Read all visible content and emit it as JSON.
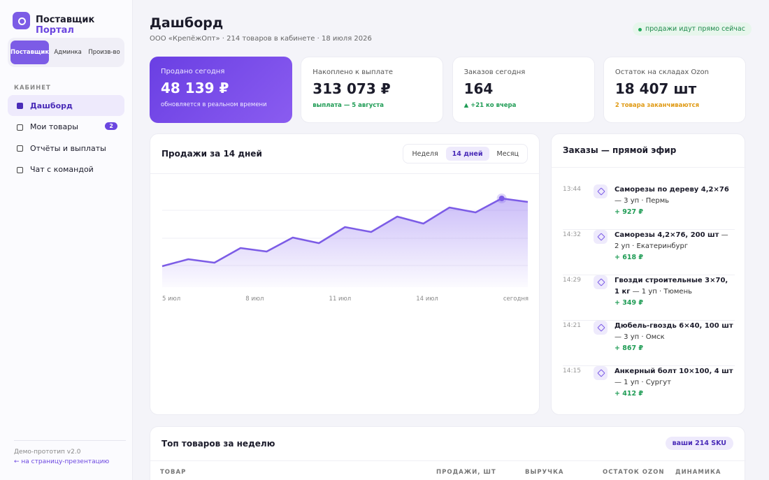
{
  "sidebar": {
    "brand": "Поставщик",
    "brand_accent": "Портал",
    "tabs": [
      "Поставщик",
      "Админка",
      "Произв-во"
    ],
    "active_tab": 0,
    "section": "КАБИНЕТ",
    "nav": [
      {
        "label": "Дашборд"
      },
      {
        "label": "Мои товары",
        "badge": "2"
      },
      {
        "label": "Отчёты и выплаты"
      },
      {
        "label": "Чат с командой"
      }
    ],
    "active_nav": 0,
    "footer_note": "Демо-прототип v2.0",
    "footer_link": "← на страницу-презентацию"
  },
  "header": {
    "title": "Дашборд",
    "subtitle": "ООО «КрепёжОпт» · 214 товаров в кабинете · 18 июля 2026",
    "status": "продажи идут прямо сейчас"
  },
  "kpis": [
    {
      "label": "Продано сегодня",
      "value": "48 139 ₽",
      "note": "обновляется в реальном времени"
    },
    {
      "label": "Накоплено к выплате",
      "value": "313 073 ₽",
      "note": "выплата — 5 августа"
    },
    {
      "label": "Заказов сегодня",
      "value": "164",
      "note": "▲ +21 ко вчера"
    },
    {
      "label": "Остаток на складах Ozon",
      "value": "18 407 шт",
      "note": "2 товара заканчиваются"
    }
  ],
  "sales": {
    "title": "Продажи за 14 дней",
    "periods": [
      "Неделя",
      "14 дней",
      "Месяц"
    ],
    "active_period": 1,
    "chart": {
      "type": "line",
      "color": "#7c5ce6",
      "x_labels": [
        "5 июл",
        "8 июл",
        "11 июл",
        "14 июл",
        "сегодня"
      ],
      "values": [
        30,
        40,
        35,
        56,
        51,
        71,
        63,
        86,
        79,
        101,
        91,
        114,
        107,
        127,
        122
      ],
      "ylim": [
        0,
        160
      ],
      "highlight": 13
    }
  },
  "orders": {
    "title": "Заказы — прямой эфир",
    "items": [
      {
        "time": "13:44",
        "name": "Саморезы по дереву 4,2×76",
        "details": " — 3 уп · Пермь",
        "amount": "+ 927 ₽"
      },
      {
        "time": "14:32",
        "name": "Саморезы 4,2×76, 200 шт",
        "details": " — 2 уп · Екатеринбург",
        "amount": "+ 618 ₽"
      },
      {
        "time": "14:29",
        "name": "Гвозди строительные 3×70, 1 кг",
        "details": " — 1 уп · Тюмень",
        "amount": "+ 349 ₽"
      },
      {
        "time": "14:21",
        "name": "Дюбель-гвоздь 6×40, 100 шт",
        "details": " — 3 уп · Омск",
        "amount": "+ 867 ₽"
      },
      {
        "time": "14:15",
        "name": "Анкерный болт 10×100, 4 шт",
        "details": " — 1 уп · Сургут",
        "amount": "+ 412 ₽"
      }
    ]
  },
  "top": {
    "title": "Топ товаров за неделю",
    "badge": "ваши 214 SKU",
    "columns": [
      "ТОВАР",
      "ПРОДАЖИ, ШТ",
      "ВЫРУЧКА",
      "ОСТАТОК OZON",
      "ДИНАМИКА"
    ]
  }
}
